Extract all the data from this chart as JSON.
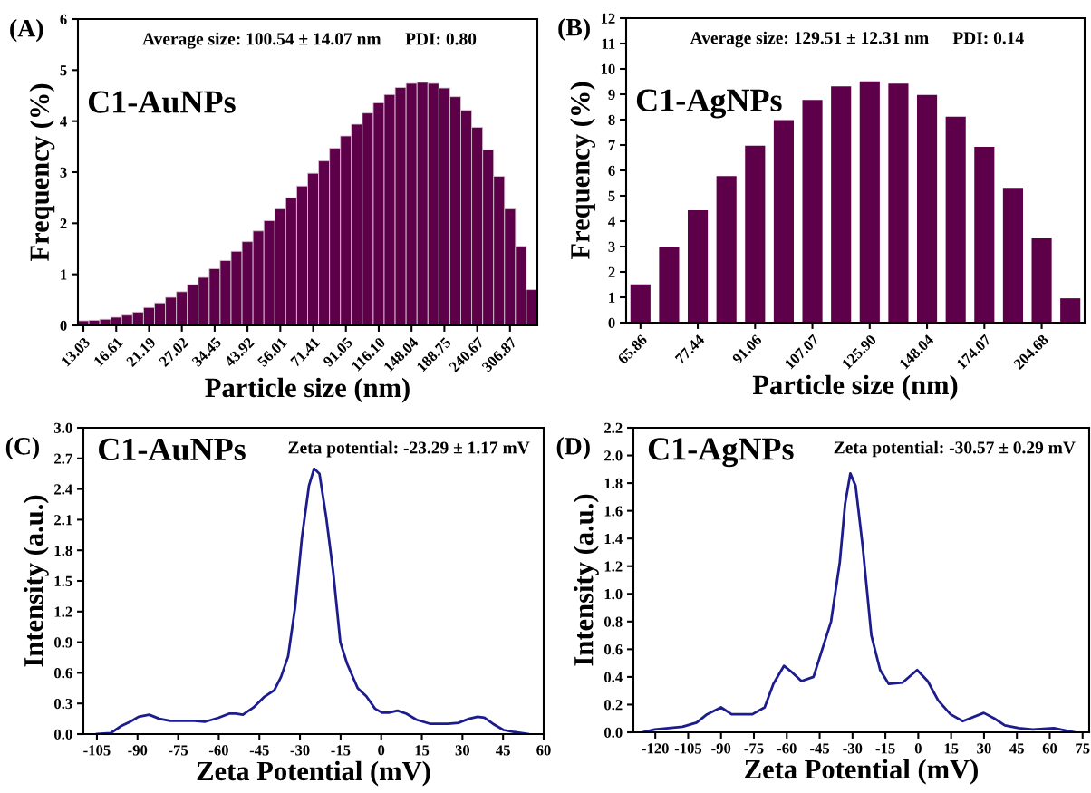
{
  "chart_data": [
    {
      "type": "bar",
      "xlabel": "Particle size (nm)",
      "ylabel": "Frequency (%)",
      "color": "#5e0049",
      "categories": [
        "13.03",
        null,
        null,
        "16.61",
        null,
        null,
        "21.19",
        null,
        null,
        "27.02",
        null,
        null,
        "34.45",
        null,
        null,
        "43.92",
        null,
        null,
        "56.01",
        null,
        null,
        "71.41",
        null,
        null,
        "91.05",
        null,
        null,
        "116.10",
        null,
        null,
        "148.04",
        null,
        null,
        "188.75",
        null,
        null,
        "240.67",
        null,
        null,
        "306.87",
        null,
        null
      ],
      "values": [
        0.09,
        0.1,
        0.12,
        0.16,
        0.2,
        0.26,
        0.35,
        0.44,
        0.55,
        0.66,
        0.8,
        0.94,
        1.11,
        1.27,
        1.45,
        1.64,
        1.85,
        2.05,
        2.28,
        2.5,
        2.73,
        2.98,
        3.22,
        3.47,
        3.71,
        3.94,
        4.16,
        4.36,
        4.52,
        4.66,
        4.74,
        4.76,
        4.74,
        4.65,
        4.48,
        4.21,
        3.88,
        3.44,
        2.92,
        2.28,
        1.55,
        0.7
      ],
      "ylim": [
        0,
        6
      ],
      "yticks": [
        0,
        1,
        2,
        3,
        4,
        5,
        6
      ],
      "annotations": [
        "(A)",
        "Average size: 100.54 ± 14.07 nm",
        "PDI: 0.80",
        "C1-AuNPs"
      ]
    },
    {
      "type": "bar",
      "xlabel": "Particle size (nm)",
      "ylabel": "Frequency (%)",
      "color": "#5e0049",
      "categories": [
        "65.86",
        null,
        "77.44",
        null,
        "91.06",
        null,
        "107.07",
        null,
        "125.90",
        null,
        "148.04",
        null,
        "174.07",
        null,
        "204.68",
        null
      ],
      "values": [
        1.51,
        2.99,
        4.43,
        5.78,
        6.97,
        7.98,
        8.78,
        9.31,
        9.51,
        9.42,
        8.97,
        8.12,
        6.93,
        5.31,
        3.32,
        0.96
      ],
      "ylim": [
        0,
        12
      ],
      "yticks": [
        0,
        1,
        2,
        3,
        4,
        5,
        6,
        7,
        8,
        9,
        10,
        11,
        12
      ],
      "annotations": [
        "(B)",
        "Average size: 129.51 ± 12.31 nm",
        "PDI: 0.14",
        "C1-AgNPs"
      ]
    },
    {
      "type": "line",
      "xlabel": "Zeta Potential (mV)",
      "ylabel": "Intensity (a.u.)",
      "color": "#1c1c8e",
      "x": [
        -105,
        -99.9,
        -96,
        -92.8,
        -89.6,
        -85.7,
        -81.9,
        -78,
        -72.9,
        -69,
        -65.2,
        -60.1,
        -56.2,
        -53.7,
        -51.1,
        -47.2,
        -43.4,
        -39.5,
        -37,
        -34.4,
        -31.8,
        -29.3,
        -26.7,
        -24.8,
        -22.8,
        -20.3,
        -17.7,
        -15.1,
        -12.6,
        -8.7,
        -5.5,
        -2.3,
        0.3,
        2.8,
        6,
        9.3,
        13.1,
        18.2,
        24.7,
        28.5,
        32.4,
        35.6,
        38.1,
        41.3,
        45.2,
        49.1,
        54.2
      ],
      "values": [
        0,
        0.01,
        0.08,
        0.12,
        0.17,
        0.19,
        0.15,
        0.13,
        0.13,
        0.13,
        0.12,
        0.16,
        0.2,
        0.2,
        0.19,
        0.26,
        0.36,
        0.43,
        0.56,
        0.76,
        1.24,
        1.92,
        2.43,
        2.6,
        2.55,
        2.12,
        1.58,
        0.9,
        0.69,
        0.45,
        0.37,
        0.25,
        0.21,
        0.21,
        0.23,
        0.2,
        0.14,
        0.1,
        0.1,
        0.11,
        0.15,
        0.17,
        0.16,
        0.1,
        0.04,
        0.02,
        0
      ],
      "xlim": [
        -110,
        60
      ],
      "xticks": [
        -105,
        -90,
        -75,
        -60,
        -45,
        -30,
        -15,
        0,
        15,
        30,
        45,
        60
      ],
      "ylim": [
        0,
        3.0
      ],
      "yticks": [
        {
          "value": 0,
          "label": "0.0"
        },
        0.3,
        0.6,
        0.9,
        1.2,
        1.5,
        1.8,
        2.1,
        2.4,
        2.7,
        {
          "value": 3,
          "label": "3.0"
        }
      ],
      "annotations": [
        "(C)",
        "C1-AuNPs",
        "Zeta potential: -23.29 ± 1.17 mV"
      ]
    },
    {
      "type": "line",
      "xlabel": "Zeta Potential (mV)",
      "ylabel": "Intensity (a.u.)",
      "color": "#1c1c8e",
      "x": [
        -125.9,
        -120.3,
        -113.9,
        -107.6,
        -101.2,
        -96.4,
        -90,
        -85.2,
        -80.4,
        -75.7,
        -70.1,
        -66.1,
        -61.3,
        -58.1,
        -53.3,
        -47.8,
        -43.8,
        -39.8,
        -35.8,
        -33.4,
        -31,
        -28.6,
        -25.4,
        -21.4,
        -17.4,
        -13.5,
        -7.1,
        -0.5,
        4.3,
        9.1,
        14.7,
        20.3,
        29.9,
        34.7,
        39.5,
        45.9,
        52.3,
        61.9,
        71.4
      ],
      "values": [
        0,
        0.02,
        0.03,
        0.04,
        0.07,
        0.13,
        0.18,
        0.13,
        0.13,
        0.13,
        0.18,
        0.35,
        0.48,
        0.44,
        0.37,
        0.4,
        0.6,
        0.8,
        1.23,
        1.65,
        1.87,
        1.78,
        1.35,
        0.7,
        0.45,
        0.35,
        0.36,
        0.45,
        0.37,
        0.23,
        0.13,
        0.08,
        0.14,
        0.1,
        0.05,
        0.03,
        0.02,
        0.03,
        0
      ],
      "xlim": [
        -130,
        78
      ],
      "xticks": [
        -120,
        -105,
        -90,
        -75,
        -60,
        -45,
        -30,
        -15,
        0,
        15,
        30,
        45,
        60,
        75
      ],
      "ylim": [
        0,
        2.2
      ],
      "yticks": [
        {
          "value": 0,
          "label": "0.0"
        },
        0.2,
        0.4,
        0.6,
        0.8,
        {
          "value": 1,
          "label": "1.0"
        },
        1.2,
        1.4,
        1.6,
        1.8,
        {
          "value": 2,
          "label": "2.0"
        },
        2.2
      ],
      "annotations": [
        "(D)",
        "C1-AgNPs",
        "Zeta potential: -30.57 ± 0.29 mV"
      ]
    }
  ]
}
